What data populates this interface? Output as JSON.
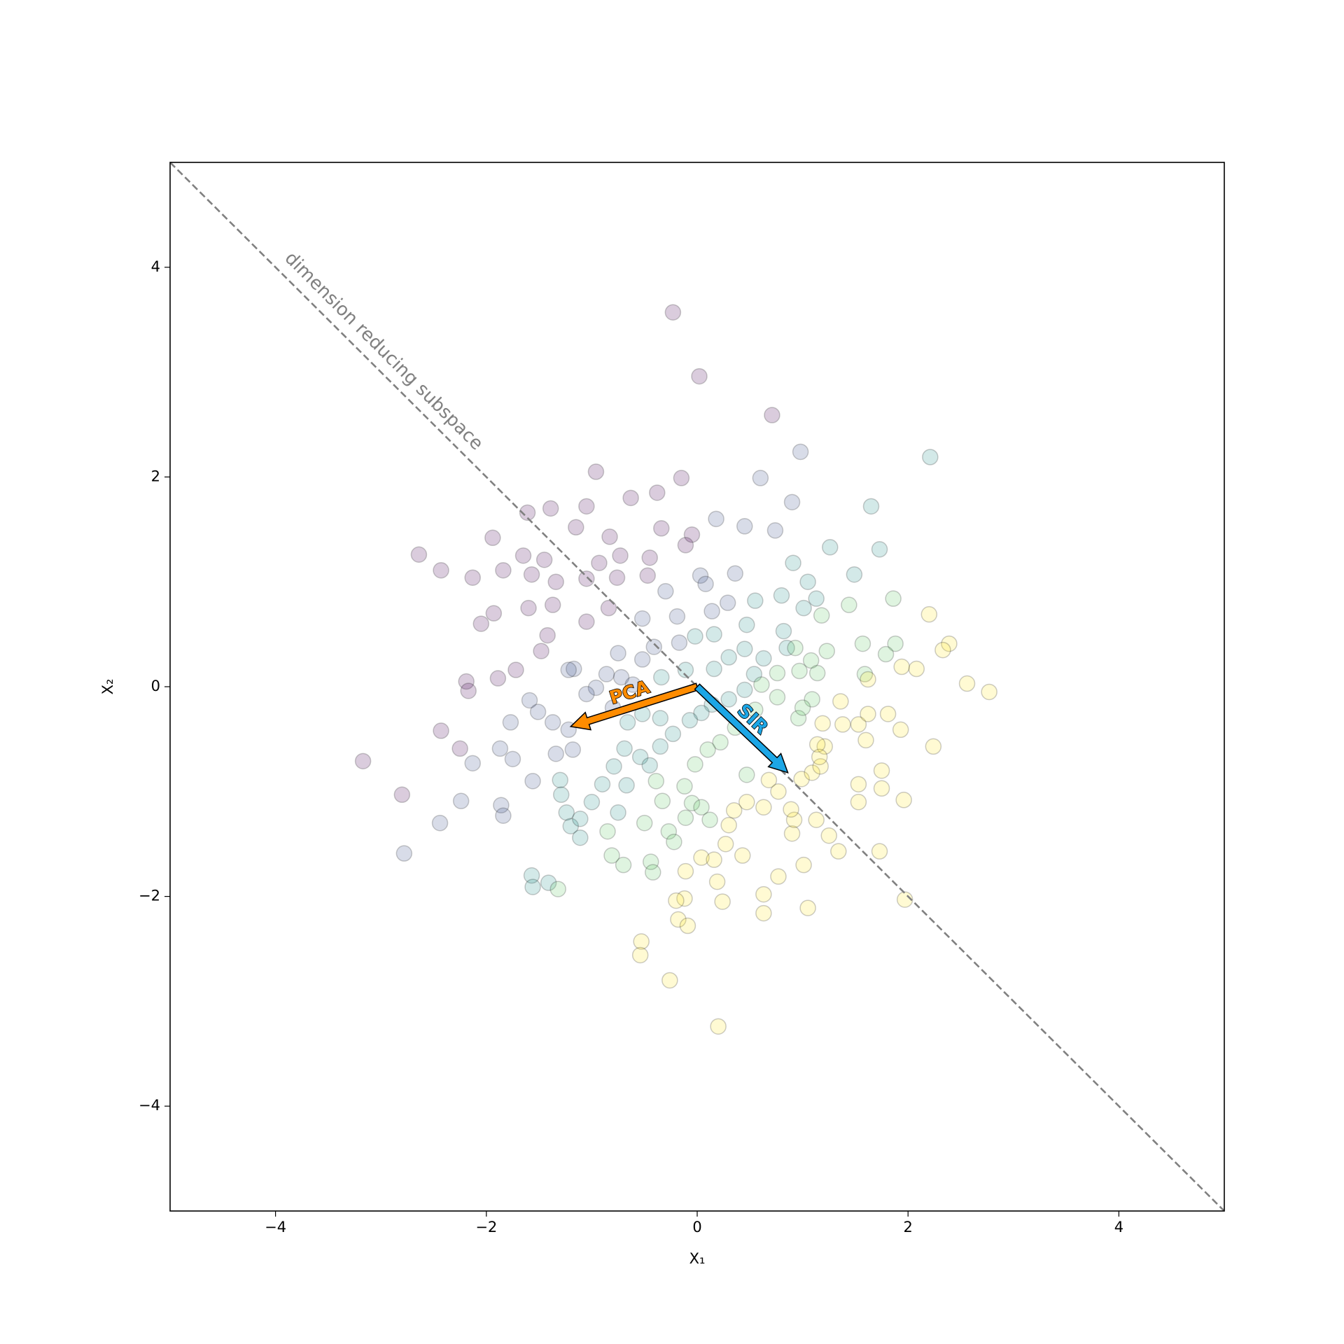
{
  "chart_data": {
    "type": "scatter",
    "x_label": "X₁",
    "y_label": "X₂",
    "xlim": [
      -5,
      5
    ],
    "ylim": [
      -5,
      5
    ],
    "xticks": [
      {
        "value": -4,
        "label": "−4"
      },
      {
        "value": -2,
        "label": "−2"
      },
      0,
      2,
      4
    ],
    "yticks": [
      {
        "value": -4,
        "label": "−4"
      },
      {
        "value": -2,
        "label": "−2"
      },
      0,
      2,
      4
    ],
    "grid": false,
    "series": [
      {
        "color": "#440154",
        "x": [
          -0.23,
          0.02,
          0.71,
          -0.96,
          -0.15,
          -2.64,
          -2.43,
          -1.94,
          -2.13,
          -1.61,
          -1.39,
          -1.05,
          -0.63,
          -0.38,
          -1.15,
          -0.83,
          -0.34,
          -0.05,
          -2.05,
          -1.93,
          -1.6,
          -1.37,
          -1.05,
          -0.76,
          -0.47,
          -0.84,
          -1.05,
          -1.42,
          -1.48,
          -1.72,
          -1.89,
          -2.19,
          -2.17,
          -2.43,
          -2.25,
          -3.17,
          -2.8,
          -1.34,
          -1.57,
          -1.84,
          -1.65,
          -1.45,
          -0.93,
          -0.73,
          -0.45,
          -0.11
        ],
        "y": [
          3.57,
          2.96,
          2.59,
          2.05,
          1.99,
          1.26,
          1.11,
          1.42,
          1.04,
          1.66,
          1.7,
          1.72,
          1.8,
          1.85,
          1.52,
          1.43,
          1.51,
          1.45,
          0.6,
          0.7,
          0.75,
          0.78,
          1.03,
          1.04,
          1.06,
          0.75,
          0.62,
          0.49,
          0.34,
          0.16,
          0.08,
          0.05,
          -0.04,
          -0.42,
          -0.59,
          -0.71,
          -1.03,
          1.0,
          1.07,
          1.11,
          1.25,
          1.21,
          1.18,
          1.25,
          1.23,
          1.35
        ]
      },
      {
        "color": "#3b528b",
        "x": [
          0.98,
          0.6,
          0.18,
          0.45,
          0.74,
          0.9,
          -0.3,
          0.03,
          0.36,
          0.14,
          -0.19,
          -0.52,
          -2.13,
          -2.24,
          -2.44,
          -1.86,
          -1.84,
          -2.78,
          -1.56,
          -1.75,
          -1.87,
          -1.77,
          -1.59,
          -1.51,
          -1.37,
          -1.22,
          -1.18,
          -1.34,
          -0.8,
          -0.96,
          -1.17,
          -1.22,
          -1.05,
          -0.72,
          -0.75,
          -0.52,
          0.08,
          0.29,
          -0.61,
          -0.86,
          -0.41,
          -0.17
        ],
        "y": [
          2.24,
          1.99,
          1.6,
          1.53,
          1.49,
          1.76,
          0.91,
          1.06,
          1.08,
          0.72,
          0.67,
          0.65,
          -0.73,
          -1.09,
          -1.3,
          -1.13,
          -1.23,
          -1.59,
          -0.9,
          -0.69,
          -0.59,
          -0.34,
          -0.13,
          -0.24,
          -0.34,
          -0.41,
          -0.6,
          -0.64,
          -0.2,
          -0.01,
          0.17,
          0.16,
          -0.07,
          0.09,
          0.32,
          0.26,
          0.98,
          0.8,
          0.02,
          0.12,
          0.38,
          0.42
        ]
      },
      {
        "color": "#21918c",
        "x": [
          2.21,
          1.65,
          1.73,
          1.26,
          0.91,
          1.05,
          1.49,
          0.82,
          0.47,
          -1.3,
          -1.29,
          -1.24,
          -1.2,
          -1.11,
          -1.11,
          -1.0,
          -0.9,
          -0.79,
          -0.69,
          -0.66,
          -0.34,
          -0.11,
          0.16,
          0.3,
          0.45,
          0.63,
          0.85,
          0.45,
          0.3,
          0.14,
          0.04,
          -0.07,
          -0.23,
          -0.35,
          -0.54,
          -0.45,
          -0.67,
          -0.75,
          -1.57,
          -1.56,
          -1.41,
          0.55,
          0.8,
          1.13,
          1.01,
          0.54,
          -0.35,
          -0.52,
          -0.02,
          0.16
        ],
        "y": [
          2.19,
          1.72,
          1.31,
          1.33,
          1.18,
          1.0,
          1.07,
          0.53,
          0.59,
          -0.89,
          -1.03,
          -1.2,
          -1.33,
          -1.26,
          -1.44,
          -1.1,
          -0.93,
          -0.76,
          -0.59,
          -0.34,
          0.09,
          0.16,
          0.17,
          0.28,
          0.36,
          0.27,
          0.37,
          -0.03,
          -0.12,
          -0.17,
          -0.25,
          -0.32,
          -0.45,
          -0.57,
          -0.67,
          -0.75,
          -0.94,
          -1.2,
          -1.8,
          -1.91,
          -1.87,
          0.82,
          0.87,
          0.84,
          0.75,
          0.12,
          -0.3,
          -0.26,
          0.48,
          0.5
        ]
      },
      {
        "color": "#5ec962",
        "x": [
          1.86,
          1.88,
          1.79,
          1.57,
          1.44,
          1.18,
          0.93,
          1.08,
          1.23,
          1.14,
          0.97,
          0.76,
          0.61,
          -0.85,
          -0.81,
          -0.7,
          -0.44,
          -0.42,
          -0.5,
          -0.33,
          -0.27,
          -0.22,
          -0.11,
          -0.05,
          0.04,
          0.12,
          0.47,
          1.59,
          1.09,
          0.96,
          1.0,
          0.76,
          0.55,
          0.36,
          0.22,
          0.1,
          -0.02,
          -0.12,
          -0.39,
          -1.32
        ],
        "y": [
          0.84,
          0.41,
          0.31,
          0.41,
          0.78,
          0.68,
          0.37,
          0.25,
          0.34,
          0.13,
          0.15,
          0.13,
          0.02,
          -1.38,
          -1.61,
          -1.7,
          -1.67,
          -1.77,
          -1.3,
          -1.09,
          -1.38,
          -1.48,
          -1.25,
          -1.11,
          -1.15,
          -1.27,
          -0.84,
          0.12,
          -0.12,
          -0.3,
          -0.2,
          -0.1,
          -0.22,
          -0.39,
          -0.53,
          -0.6,
          -0.74,
          -0.95,
          -0.9,
          -1.93
        ]
      },
      {
        "color": "#fde725",
        "x": [
          2.2,
          2.39,
          2.33,
          2.56,
          2.77,
          2.08,
          0.04,
          0.16,
          0.19,
          -0.11,
          -0.12,
          -0.2,
          -0.18,
          -0.09,
          0.24,
          -0.53,
          -0.54,
          -0.26,
          0.2,
          0.63,
          0.63,
          1.05,
          0.77,
          1.01,
          1.34,
          1.73,
          1.97,
          1.96,
          1.75,
          1.75,
          1.53,
          1.53,
          1.25,
          1.13,
          0.9,
          0.92,
          0.89,
          0.63,
          0.47,
          0.43,
          0.27,
          0.3,
          0.35,
          0.68,
          0.77,
          0.99,
          1.09,
          1.17,
          1.21,
          1.14,
          1.19,
          1.16,
          1.38,
          1.36,
          1.53,
          1.62,
          1.6,
          1.81,
          1.93,
          2.24,
          1.62,
          1.94
        ],
        "y": [
          0.69,
          0.41,
          0.35,
          0.03,
          -0.05,
          0.17,
          -1.63,
          -1.65,
          -1.86,
          -1.76,
          -2.02,
          -2.04,
          -2.22,
          -2.28,
          -2.05,
          -2.43,
          -2.56,
          -2.8,
          -3.24,
          -1.98,
          -2.16,
          -2.11,
          -1.81,
          -1.7,
          -1.57,
          -1.57,
          -2.03,
          -1.08,
          -0.97,
          -0.8,
          -0.93,
          -1.1,
          -1.42,
          -1.27,
          -1.4,
          -1.27,
          -1.17,
          -1.15,
          -1.1,
          -1.61,
          -1.5,
          -1.32,
          -1.18,
          -0.89,
          -1.0,
          -0.88,
          -0.82,
          -0.76,
          -0.57,
          -0.55,
          -0.35,
          -0.67,
          -0.36,
          -0.14,
          -0.36,
          -0.26,
          -0.51,
          -0.26,
          -0.41,
          -0.57,
          0.07,
          0.19
        ]
      }
    ],
    "reference_line": {
      "text": "dimension reducing subspace",
      "color": "#808080",
      "x": [
        -5,
        5
      ],
      "y": [
        5,
        -5
      ]
    },
    "arrows": [
      {
        "text": "PCA",
        "color": "#ff8c00",
        "start": [
          0,
          0
        ],
        "end": [
          -1.2,
          -0.38
        ]
      },
      {
        "text": "SIR",
        "color": "#1ca6e6",
        "start": [
          0,
          0
        ],
        "end": [
          0.86,
          -0.82
        ]
      }
    ]
  }
}
